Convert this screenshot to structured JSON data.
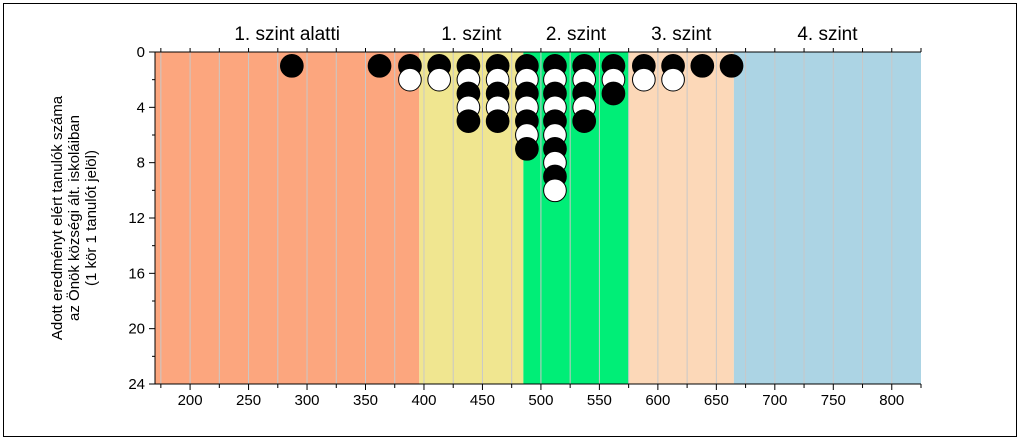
{
  "chart_data": {
    "type": "scatter",
    "style": "dot-stack",
    "ylabel_lines": [
      "Adott eredményt elért tanulók száma",
      "az Önök községi ált. iskoláiban",
      "(1 kör 1 tanulót jelöl)"
    ],
    "xlim": [
      170,
      825
    ],
    "ylim": [
      0,
      24
    ],
    "y_inverted": true,
    "x_ticks": [
      200,
      250,
      300,
      350,
      400,
      450,
      500,
      550,
      600,
      650,
      700,
      750,
      800
    ],
    "y_ticks": [
      0,
      4,
      8,
      12,
      16,
      20,
      24
    ],
    "levels": [
      {
        "label": "1. szint alatti",
        "from": 170,
        "to": 396,
        "color": "#fca67e"
      },
      {
        "label": "1. szint",
        "from": 396,
        "to": 485,
        "color": "#f0e690"
      },
      {
        "label": "2. szint",
        "from": 485,
        "to": 575,
        "color": "#00ee77"
      },
      {
        "label": "3. szint",
        "from": 575,
        "to": 665,
        "color": "#fcd8b8"
      },
      {
        "label": "4. szint",
        "from": 665,
        "to": 825,
        "color": "#acd4e4"
      }
    ],
    "stacks": [
      {
        "x": 287,
        "count": 1
      },
      {
        "x": 362,
        "count": 1
      },
      {
        "x": 388,
        "count": 2
      },
      {
        "x": 413,
        "count": 2
      },
      {
        "x": 438,
        "count": 5
      },
      {
        "x": 463,
        "count": 5
      },
      {
        "x": 488,
        "count": 7
      },
      {
        "x": 512,
        "count": 10
      },
      {
        "x": 537,
        "count": 5
      },
      {
        "x": 562,
        "count": 3
      },
      {
        "x": 588,
        "count": 2
      },
      {
        "x": 613,
        "count": 2
      },
      {
        "x": 638,
        "count": 1
      },
      {
        "x": 663,
        "count": 1
      }
    ],
    "dot_colors": {
      "odd": "#000000",
      "even": "#ffffff"
    }
  }
}
